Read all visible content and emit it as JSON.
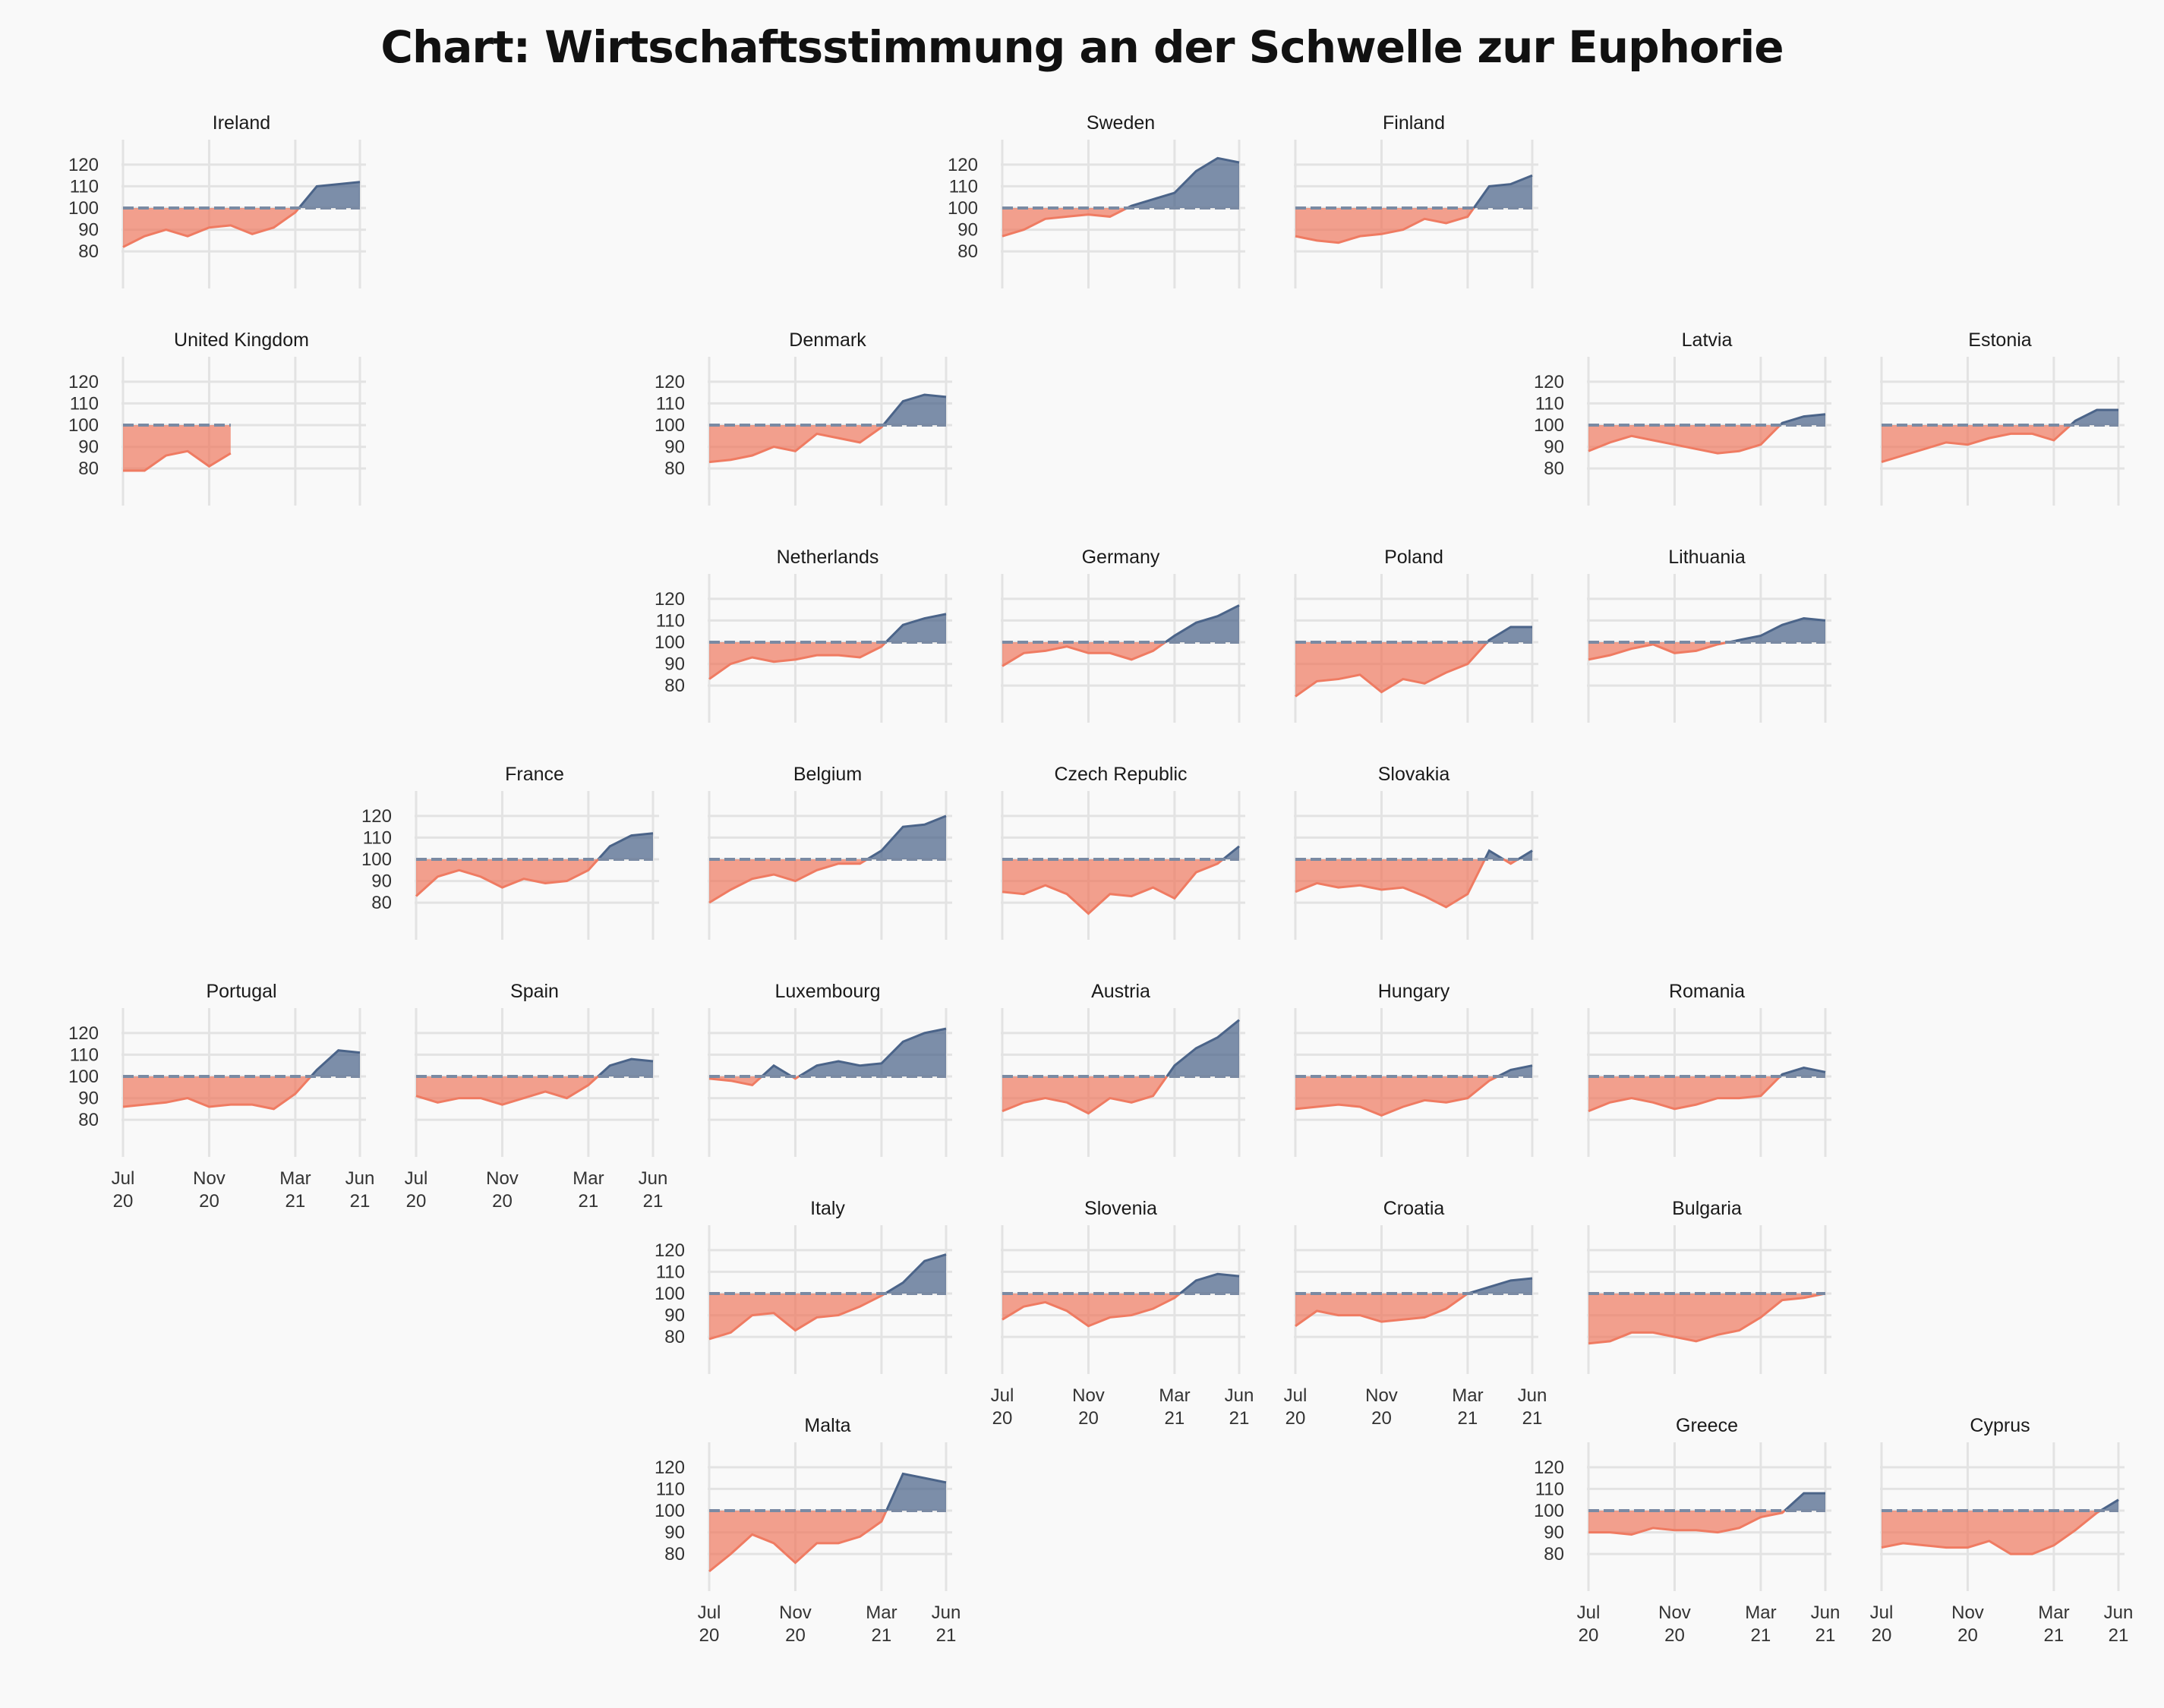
{
  "title": "Chart: Wirtschaftsstimmung an der Schwelle zur Euphorie",
  "colors": {
    "above": "#4b6489",
    "below": "#ef7b62",
    "baseline": "#7a8aa3",
    "grid": "#e3e3e3"
  },
  "chart_data": {
    "type": "area",
    "baseline": 100,
    "ylim": [
      72,
      128
    ],
    "yticks": [
      80,
      90,
      100,
      110,
      120
    ],
    "xticks": [
      {
        "idx": 0,
        "line1": "Jul",
        "line2": "20"
      },
      {
        "idx": 4,
        "line1": "Nov",
        "line2": "20"
      },
      {
        "idx": 8,
        "line1": "Mar",
        "line2": "21"
      },
      {
        "idx": 11,
        "line1": "Jun",
        "line2": "21"
      }
    ],
    "months": [
      "2020-07",
      "2020-08",
      "2020-09",
      "2020-10",
      "2020-11",
      "2020-12",
      "2021-01",
      "2021-02",
      "2021-03",
      "2021-04",
      "2021-05",
      "2021-06"
    ],
    "panels": [
      {
        "name": "Ireland",
        "row": 0,
        "col": 0,
        "values": [
          82,
          87,
          90,
          87,
          91,
          92,
          88,
          91,
          98,
          110,
          111,
          112
        ]
      },
      {
        "name": "Sweden",
        "row": 0,
        "col": 3,
        "values": [
          87,
          90,
          95,
          96,
          97,
          96,
          101,
          104,
          107,
          117,
          123,
          121
        ]
      },
      {
        "name": "Finland",
        "row": 0,
        "col": 4,
        "values": [
          87,
          85,
          84,
          87,
          88,
          90,
          95,
          93,
          96,
          110,
          111,
          115
        ]
      },
      {
        "name": "United Kingdom",
        "row": 1,
        "col": 0,
        "values": [
          79,
          79,
          86,
          88,
          81,
          87
        ]
      },
      {
        "name": "Denmark",
        "row": 1,
        "col": 2,
        "values": [
          83,
          84,
          86,
          90,
          88,
          96,
          94,
          92,
          99,
          111,
          114,
          113
        ]
      },
      {
        "name": "Latvia",
        "row": 1,
        "col": 5,
        "values": [
          88,
          92,
          95,
          93,
          91,
          89,
          87,
          88,
          91,
          101,
          104,
          105
        ]
      },
      {
        "name": "Estonia",
        "row": 1,
        "col": 6,
        "values": [
          83,
          86,
          89,
          92,
          91,
          94,
          96,
          96,
          93,
          102,
          107,
          107
        ]
      },
      {
        "name": "Netherlands",
        "row": 2,
        "col": 2,
        "values": [
          83,
          90,
          93,
          91,
          92,
          94,
          94,
          93,
          98,
          108,
          111,
          113
        ]
      },
      {
        "name": "Germany",
        "row": 2,
        "col": 3,
        "values": [
          89,
          95,
          96,
          98,
          95,
          95,
          92,
          96,
          103,
          109,
          112,
          117
        ]
      },
      {
        "name": "Poland",
        "row": 2,
        "col": 4,
        "values": [
          75,
          82,
          83,
          85,
          77,
          83,
          81,
          86,
          90,
          101,
          107,
          107
        ]
      },
      {
        "name": "Lithuania",
        "row": 2,
        "col": 5,
        "values": [
          92,
          94,
          97,
          99,
          95,
          96,
          99,
          101,
          103,
          108,
          111,
          110
        ]
      },
      {
        "name": "France",
        "row": 3,
        "col": 1,
        "values": [
          83,
          92,
          95,
          92,
          87,
          91,
          89,
          90,
          95,
          106,
          111,
          112
        ]
      },
      {
        "name": "Belgium",
        "row": 3,
        "col": 2,
        "values": [
          80,
          86,
          91,
          93,
          90,
          95,
          98,
          98,
          104,
          115,
          116,
          120
        ]
      },
      {
        "name": "Czech Republic",
        "row": 3,
        "col": 3,
        "values": [
          85,
          84,
          88,
          84,
          75,
          84,
          83,
          87,
          82,
          94,
          98,
          106
        ]
      },
      {
        "name": "Slovakia",
        "row": 3,
        "col": 4,
        "values": [
          85,
          89,
          87,
          88,
          86,
          87,
          83,
          78,
          84,
          104,
          98,
          104
        ]
      },
      {
        "name": "Portugal",
        "row": 4,
        "col": 0,
        "values": [
          86,
          87,
          88,
          90,
          86,
          87,
          87,
          85,
          92,
          103,
          112,
          111
        ]
      },
      {
        "name": "Spain",
        "row": 4,
        "col": 1,
        "values": [
          91,
          88,
          90,
          90,
          87,
          90,
          93,
          90,
          96,
          105,
          108,
          107
        ]
      },
      {
        "name": "Luxembourg",
        "row": 4,
        "col": 2,
        "values": [
          99,
          98,
          96,
          105,
          99,
          105,
          107,
          105,
          106,
          116,
          120,
          122
        ]
      },
      {
        "name": "Austria",
        "row": 4,
        "col": 3,
        "values": [
          84,
          88,
          90,
          88,
          83,
          90,
          88,
          91,
          105,
          113,
          118,
          126
        ]
      },
      {
        "name": "Hungary",
        "row": 4,
        "col": 4,
        "values": [
          85,
          86,
          87,
          86,
          82,
          86,
          89,
          88,
          90,
          98,
          103,
          105
        ]
      },
      {
        "name": "Romania",
        "row": 4,
        "col": 5,
        "values": [
          84,
          88,
          90,
          88,
          85,
          87,
          90,
          90,
          91,
          101,
          104,
          102
        ]
      },
      {
        "name": "Italy",
        "row": 5,
        "col": 2,
        "values": [
          79,
          82,
          90,
          91,
          83,
          89,
          90,
          94,
          99,
          105,
          115,
          118
        ]
      },
      {
        "name": "Slovenia",
        "row": 5,
        "col": 3,
        "values": [
          88,
          94,
          96,
          92,
          85,
          89,
          90,
          93,
          98,
          106,
          109,
          108
        ]
      },
      {
        "name": "Croatia",
        "row": 5,
        "col": 4,
        "values": [
          85,
          92,
          90,
          90,
          87,
          88,
          89,
          93,
          100,
          103,
          106,
          107
        ]
      },
      {
        "name": "Bulgaria",
        "row": 5,
        "col": 5,
        "values": [
          77,
          78,
          82,
          82,
          80,
          78,
          81,
          83,
          89,
          97,
          98,
          100
        ]
      },
      {
        "name": "Malta",
        "row": 6,
        "col": 2,
        "values": [
          72,
          80,
          89,
          85,
          76,
          85,
          85,
          88,
          95,
          117,
          115,
          113
        ]
      },
      {
        "name": "Greece",
        "row": 6,
        "col": 5,
        "values": [
          90,
          90,
          89,
          92,
          91,
          91,
          90,
          92,
          97,
          99,
          108,
          108
        ]
      },
      {
        "name": "Cyprus",
        "row": 6,
        "col": 6,
        "values": [
          83,
          85,
          84,
          83,
          83,
          86,
          80,
          80,
          84,
          91,
          99,
          105
        ]
      }
    ]
  }
}
